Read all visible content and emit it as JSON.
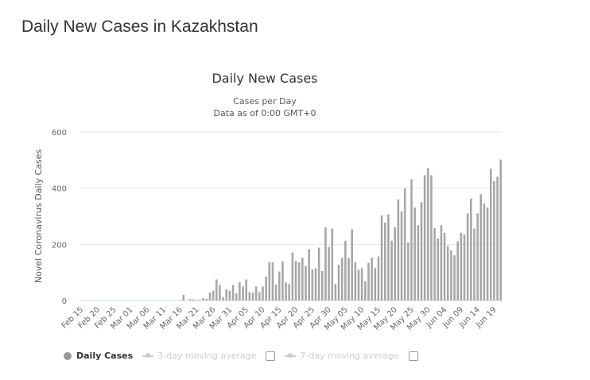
{
  "page_title": "Daily New Cases in Kazakhstan",
  "chart_data": {
    "type": "bar",
    "title": "Daily New Cases",
    "subtitle": [
      "Cases per Day",
      "Data as of 0:00 GMT+0"
    ],
    "ylabel": "Novel Coronavirus Daily Cases",
    "xlabel": "",
    "ylim": [
      0,
      600
    ],
    "yticks": [
      0,
      200,
      400,
      600
    ],
    "grid": true,
    "x_start": "Feb 15",
    "xtick_every_days": 5,
    "xtick_labels": [
      "Feb 15",
      "Feb 20",
      "Feb 25",
      "Mar 01",
      "Mar 06",
      "Mar 11",
      "Mar 16",
      "Mar 21",
      "Mar 26",
      "Mar 31",
      "Apr 05",
      "Apr 10",
      "Apr 15",
      "Apr 20",
      "Apr 25",
      "Apr 30",
      "May 05",
      "May 10",
      "May 15",
      "May 20",
      "May 25",
      "May 30",
      "Jun 04",
      "Jun 09",
      "Jun 14",
      "Jun 19"
    ],
    "series": [
      {
        "name": "Daily Cases",
        "color": "#a6a6a6",
        "values": [
          0,
          0,
          0,
          0,
          0,
          0,
          0,
          0,
          0,
          0,
          0,
          0,
          0,
          0,
          0,
          0,
          0,
          0,
          0,
          0,
          0,
          0,
          0,
          0,
          0,
          0,
          0,
          0,
          0,
          0,
          0,
          20,
          0,
          5,
          4,
          2,
          3,
          8,
          6,
          28,
          35,
          75,
          55,
          12,
          40,
          35,
          55,
          25,
          65,
          50,
          75,
          30,
          28,
          50,
          30,
          50,
          85,
          136,
          136,
          56,
          103,
          139,
          64,
          59,
          171,
          141,
          136,
          152,
          122,
          183,
          111,
          115,
          188,
          105,
          261,
          191,
          256,
          59,
          127,
          152,
          213,
          152,
          254,
          136,
          110,
          115,
          69,
          134,
          152,
          115,
          157,
          303,
          277,
          307,
          213,
          261,
          360,
          317,
          399,
          207,
          432,
          331,
          268,
          350,
          446,
          471,
          446,
          258,
          221,
          268,
          241,
          194,
          178,
          161,
          211,
          241,
          235,
          310,
          363,
          256,
          310,
          378,
          345,
          331,
          469,
          425,
          441,
          502
        ]
      }
    ],
    "legend": [
      {
        "label": "Daily Cases",
        "active": true
      },
      {
        "label": "3-day moving average",
        "active": false
      },
      {
        "label": "7-day moving average",
        "active": false
      }
    ],
    "legend_position": "bottom-left"
  }
}
